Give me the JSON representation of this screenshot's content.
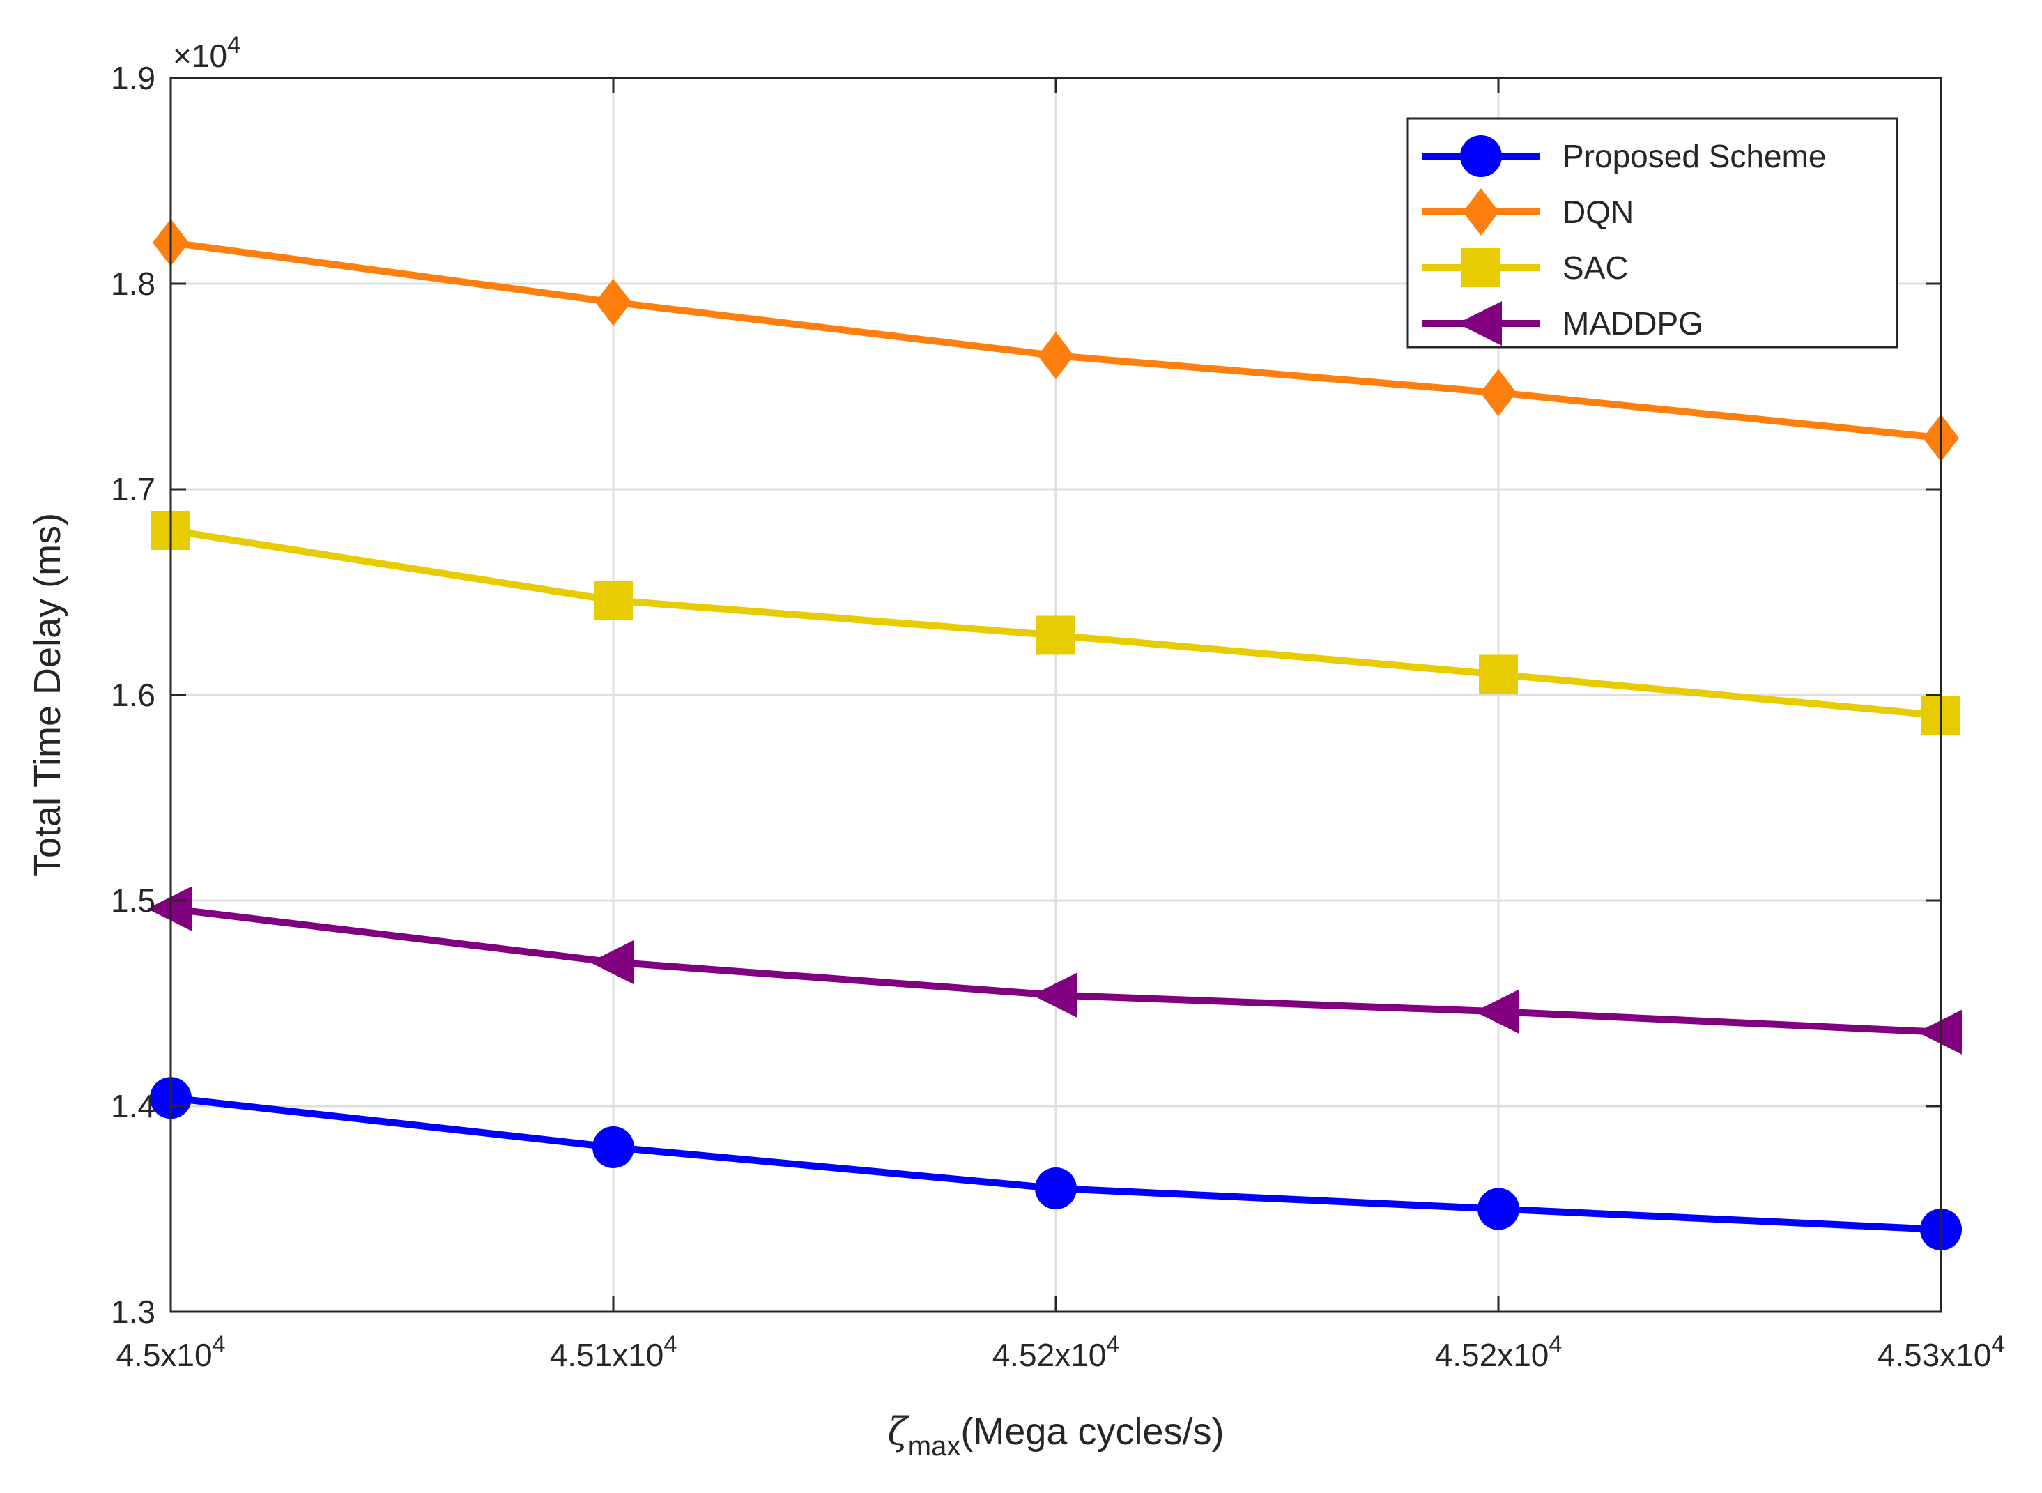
{
  "chart_data": {
    "type": "line",
    "title": "",
    "xlabel": "(Mega cycles/s)",
    "xlabel_symbol": "ζ",
    "xlabel_subscript": "max",
    "ylabel": "Total Time Delay (ms)",
    "y_exponent_label": "×10",
    "y_exponent_power": "4",
    "categories": [
      "4.5x10",
      "4.51x10",
      "4.52x10",
      "4.52x10",
      "4.53x10"
    ],
    "category_power": "4",
    "x": [
      1,
      2,
      3,
      4,
      5
    ],
    "ylim": [
      1.3,
      1.9
    ],
    "yticks": [
      "1.3",
      "1.4",
      "1.5",
      "1.6",
      "1.7",
      "1.8",
      "1.9"
    ],
    "ytick_values": [
      1.3,
      1.4,
      1.5,
      1.6,
      1.7,
      1.8,
      1.9
    ],
    "grid": true,
    "legend_position": "top-right",
    "series": [
      {
        "name": "Proposed Scheme",
        "color": "#0000ff",
        "marker": "circle",
        "values": [
          1.404,
          1.38,
          1.36,
          1.35,
          1.34
        ]
      },
      {
        "name": "DQN",
        "color": "#ff7f0e",
        "marker": "diamond",
        "values": [
          1.82,
          1.791,
          1.765,
          1.747,
          1.725
        ]
      },
      {
        "name": "SAC",
        "color": "#e6cc00",
        "marker": "square",
        "values": [
          1.68,
          1.646,
          1.629,
          1.61,
          1.59
        ]
      },
      {
        "name": "MADDPG",
        "color": "#800080",
        "marker": "triangle-left",
        "values": [
          1.496,
          1.47,
          1.454,
          1.446,
          1.436
        ]
      }
    ]
  }
}
